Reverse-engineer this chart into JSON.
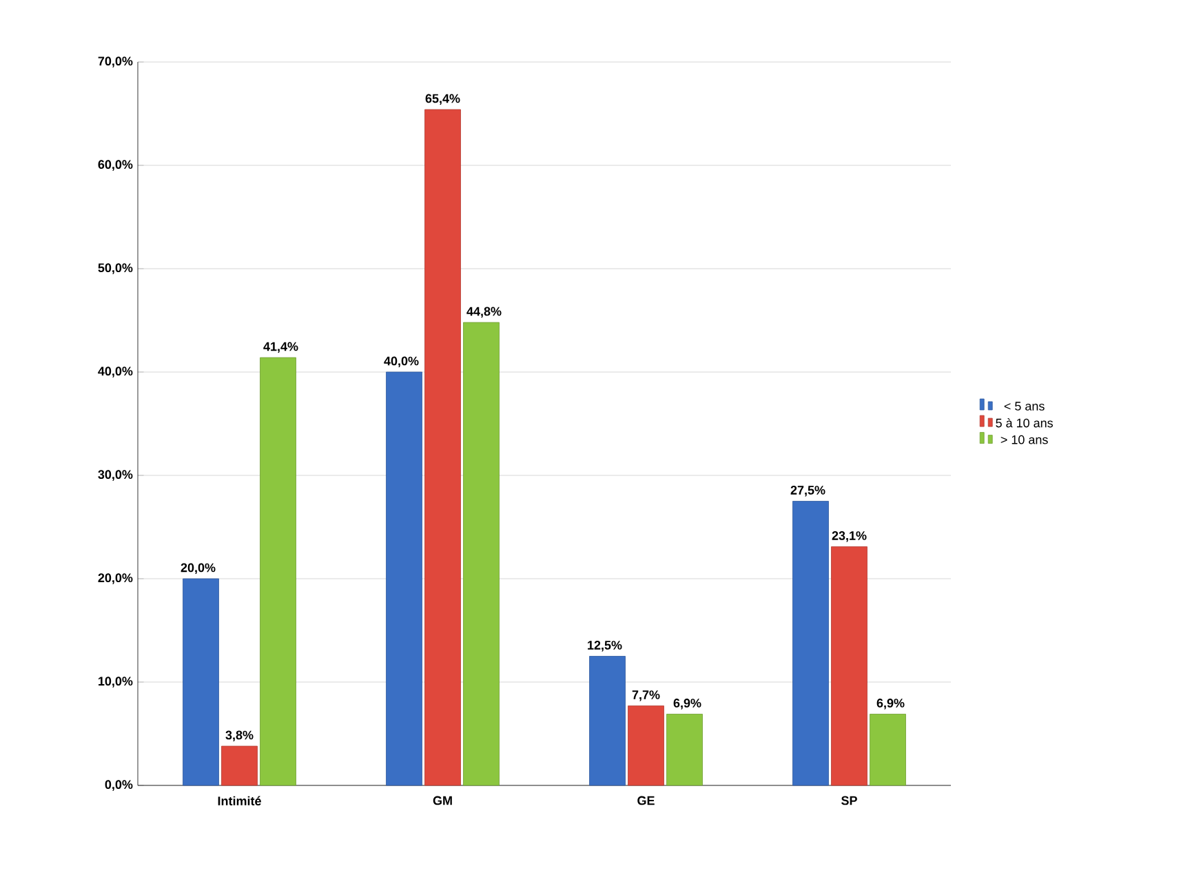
{
  "chart_data": {
    "type": "bar",
    "categories": [
      "Intimité",
      "GM",
      "GE",
      "SP"
    ],
    "series": [
      {
        "name": "< 5 ans",
        "color": "#3a6fc4",
        "values": [
          20.0,
          40.0,
          12.5,
          27.5
        ],
        "value_labels": [
          "20,0%",
          "40,0%",
          "12,5%",
          "27,5%"
        ]
      },
      {
        "name": "5 à 10 ans",
        "color": "#e0483c",
        "values": [
          3.8,
          65.4,
          7.7,
          23.1
        ],
        "value_labels": [
          "3,8%",
          "65,4%",
          "7,7%",
          "23,1%"
        ]
      },
      {
        "name": "> 10 ans",
        "color": "#8cc63f",
        "values": [
          41.4,
          44.8,
          6.9,
          6.9
        ],
        "value_labels": [
          "41,4%",
          "44,8%",
          "6,9%",
          "6,9%"
        ]
      }
    ],
    "ylim": [
      0,
      70
    ],
    "yticks": [
      {
        "value": 0,
        "label": "0,0%"
      },
      {
        "value": 10,
        "label": "10,0%"
      },
      {
        "value": 20,
        "label": "20,0%"
      },
      {
        "value": 30,
        "label": "30,0%"
      },
      {
        "value": 40,
        "label": "40,0%"
      },
      {
        "value": 50,
        "label": "50,0%"
      },
      {
        "value": 60,
        "label": "60,0%"
      },
      {
        "value": 70,
        "label": "70,0%"
      }
    ],
    "grid": "y",
    "legend": "right"
  }
}
